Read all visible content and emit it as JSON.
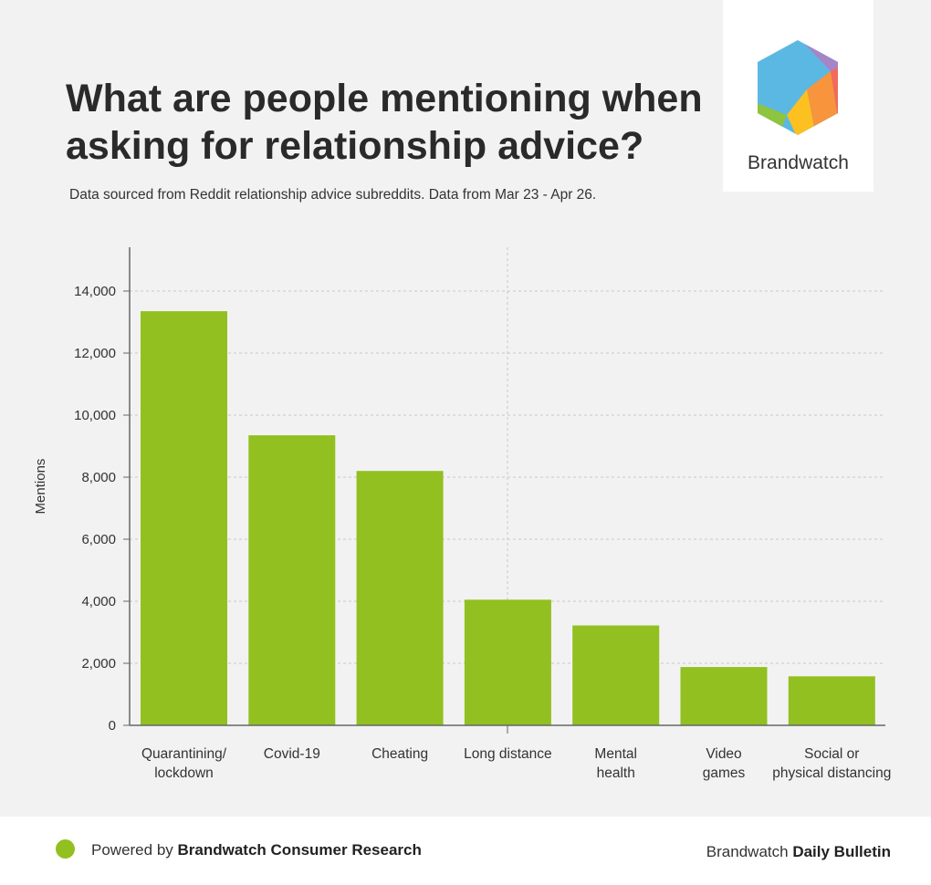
{
  "header": {
    "title": "What are people mentioning when asking for relationship advice?",
    "subtitle": "Data sourced from Reddit relationship advice subreddits. Data from Mar 23 - Apr 26."
  },
  "logo": {
    "text": "Brandwatch",
    "icon": "brandwatch-hexagon-logo"
  },
  "colors": {
    "bar": "#92c020",
    "grid": "#c8c8c8",
    "axis": "#666666",
    "background": "#f2f2f2"
  },
  "chart_data": {
    "type": "bar",
    "title": "What are people mentioning when asking for relationship advice?",
    "xlabel": "",
    "ylabel": "Mentions",
    "ylim": [
      0,
      15000
    ],
    "yticks": [
      0,
      2000,
      4000,
      6000,
      8000,
      10000,
      12000,
      14000
    ],
    "ytick_labels": [
      "0",
      "2,000",
      "4,000",
      "6,000",
      "8,000",
      "10,000",
      "12,000",
      "14,000"
    ],
    "grid": true,
    "categories": [
      [
        "Quarantining/",
        "lockdown"
      ],
      [
        "Covid-19"
      ],
      [
        "Cheating"
      ],
      [
        "Long distance"
      ],
      [
        "Mental",
        "health"
      ],
      [
        "Video",
        "games"
      ],
      [
        "Social or",
        "physical distancing"
      ]
    ],
    "values": [
      13350,
      9350,
      8200,
      4050,
      3220,
      1880,
      1580
    ]
  },
  "footer": {
    "powered_prefix": "Powered by",
    "powered_brand": "Brandwatch Consumer Research",
    "bulletin_prefix": "Brandwatch",
    "bulletin_bold": "Daily Bulletin"
  }
}
